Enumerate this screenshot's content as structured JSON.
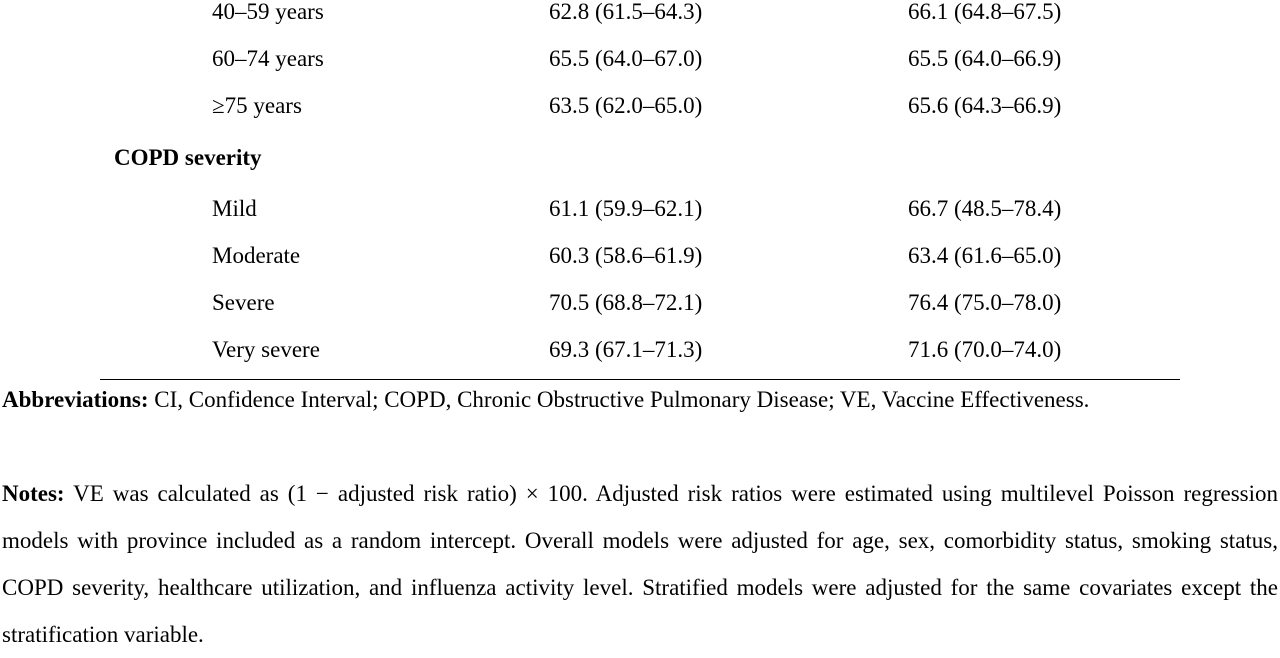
{
  "age_rows": [
    {
      "label": "40–59 years",
      "v1": "62.8 (61.5–64.3)",
      "v2": "66.1 (64.8–67.5)"
    },
    {
      "label": "60–74 years",
      "v1": "65.5 (64.0–67.0)",
      "v2": "65.5 (64.0–66.9)"
    },
    {
      "label": "≥75 years",
      "v1": "63.5 (62.0–65.0)",
      "v2": "65.6 (64.3–66.9)"
    }
  ],
  "copd": {
    "heading": "COPD severity",
    "rows": [
      {
        "label": "Mild",
        "v1": "61.1 (59.9–62.1)",
        "v2": "66.7 (48.5–78.4)"
      },
      {
        "label": "Moderate",
        "v1": "60.3 (58.6–61.9)",
        "v2": "63.4 (61.6–65.0)"
      },
      {
        "label": "Severe",
        "v1": "70.5 (68.8–72.1)",
        "v2": "76.4 (75.0–78.0)"
      },
      {
        "label": "Very severe",
        "v1": "69.3 (67.1–71.3)",
        "v2": "71.6 (70.0–74.0)"
      }
    ]
  },
  "footnotes": {
    "abbreviations_label": "Abbreviations:",
    "abbreviations_text": " CI, Confidence Interval; COPD, Chronic Obstructive Pulmonary Disease; VE, Vaccine Effectiveness.",
    "notes_label": "Notes:",
    "notes_text": " VE was calculated as (1 − adjusted risk ratio) × 100. Adjusted risk ratios were estimated using multilevel Poisson regression models with province included as a random intercept. Overall models were adjusted for age, sex, comorbidity status, smoking status, COPD severity, healthcare utilization, and influenza activity level. Stratified models were adjusted for the same covariates except the stratification variable."
  }
}
